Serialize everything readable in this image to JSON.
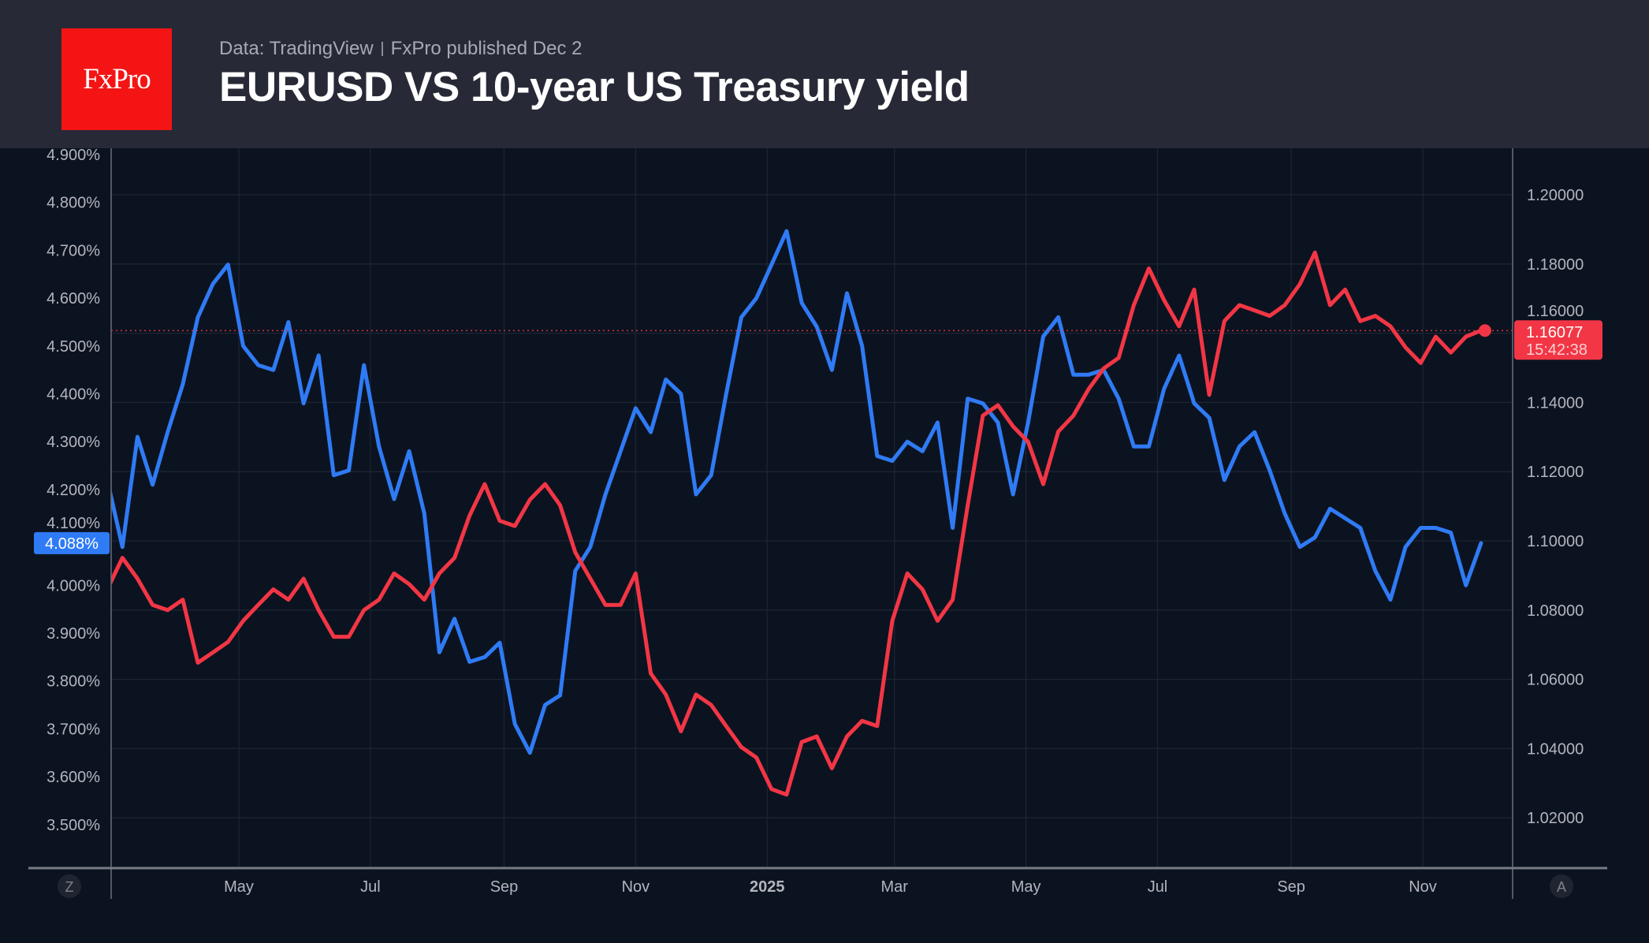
{
  "header": {
    "logo_text": "FxPro",
    "source": "Data: TradingView",
    "published": "FxPro published Dec 2",
    "title": "EURUSD VS 10-year US Treasury yield"
  },
  "colors": {
    "yield": "#2f7bf5",
    "eurusd": "#f23645",
    "background": "#0c1320",
    "header": "#272a36"
  },
  "buttons": {
    "left": "Z",
    "right": "A"
  },
  "chart_data": {
    "type": "line",
    "title": "EURUSD VS 10-year US Treasury yield",
    "x_ticks": [
      {
        "label": "May",
        "date": "2024-05-01"
      },
      {
        "label": "Jul",
        "date": "2024-07-01"
      },
      {
        "label": "Sep",
        "date": "2024-09-01"
      },
      {
        "label": "Nov",
        "date": "2024-11-01"
      },
      {
        "label": "2025",
        "date": "2025-01-01",
        "bold": true
      },
      {
        "label": "Mar",
        "date": "2025-03-01"
      },
      {
        "label": "May",
        "date": "2025-05-01"
      },
      {
        "label": "Jul",
        "date": "2025-07-01"
      },
      {
        "label": "Sep",
        "date": "2025-09-01"
      },
      {
        "label": "Nov",
        "date": "2025-11-01"
      }
    ],
    "left_axis": {
      "ticks": [
        "4.900%",
        "4.800%",
        "4.700%",
        "4.600%",
        "4.500%",
        "4.400%",
        "4.300%",
        "4.200%",
        "4.100%",
        "4.000%",
        "3.900%",
        "3.800%",
        "3.700%",
        "3.600%",
        "3.500%"
      ],
      "range": [
        3.5,
        4.9
      ],
      "last_label": "4.088%"
    },
    "right_axis": {
      "ticks": [
        "1.20000",
        "1.18000",
        "1.16000",
        "1.14000",
        "1.12000",
        "1.10000",
        "1.08000",
        "1.06000",
        "1.04000",
        "1.02000"
      ],
      "range": [
        1.02,
        1.2
      ],
      "last_label": "1.16077",
      "countdown": "15:42:38"
    },
    "grid": true,
    "dates": [
      "2024-03-01",
      "2024-03-08",
      "2024-03-15",
      "2024-03-22",
      "2024-03-29",
      "2024-04-05",
      "2024-04-12",
      "2024-04-19",
      "2024-04-26",
      "2024-05-03",
      "2024-05-10",
      "2024-05-17",
      "2024-05-24",
      "2024-05-31",
      "2024-06-07",
      "2024-06-14",
      "2024-06-21",
      "2024-06-28",
      "2024-07-05",
      "2024-07-12",
      "2024-07-19",
      "2024-07-26",
      "2024-08-02",
      "2024-08-09",
      "2024-08-16",
      "2024-08-23",
      "2024-08-30",
      "2024-09-06",
      "2024-09-13",
      "2024-09-20",
      "2024-09-27",
      "2024-10-04",
      "2024-10-11",
      "2024-10-18",
      "2024-10-25",
      "2024-11-01",
      "2024-11-08",
      "2024-11-15",
      "2024-11-22",
      "2024-11-29",
      "2024-12-06",
      "2024-12-13",
      "2024-12-20",
      "2024-12-27",
      "2025-01-03",
      "2025-01-10",
      "2025-01-17",
      "2025-01-24",
      "2025-01-31",
      "2025-02-07",
      "2025-02-14",
      "2025-02-21",
      "2025-02-28",
      "2025-03-07",
      "2025-03-14",
      "2025-03-21",
      "2025-03-28",
      "2025-04-04",
      "2025-04-11",
      "2025-04-18",
      "2025-04-25",
      "2025-05-02",
      "2025-05-09",
      "2025-05-16",
      "2025-05-23",
      "2025-05-30",
      "2025-06-06",
      "2025-06-13",
      "2025-06-20",
      "2025-06-27",
      "2025-07-04",
      "2025-07-11",
      "2025-07-18",
      "2025-07-25",
      "2025-08-01",
      "2025-08-08",
      "2025-08-15",
      "2025-08-22",
      "2025-08-29",
      "2025-09-05",
      "2025-09-12",
      "2025-09-19",
      "2025-09-26",
      "2025-10-03",
      "2025-10-10",
      "2025-10-17",
      "2025-10-24",
      "2025-10-31",
      "2025-11-07",
      "2025-11-14",
      "2025-11-21",
      "2025-11-28"
    ],
    "series": [
      {
        "axis": "left",
        "color": "#2f7bf5",
        "values": [
          4.22,
          4.08,
          4.31,
          4.21,
          4.32,
          4.42,
          4.56,
          4.63,
          4.67,
          4.5,
          4.46,
          4.45,
          4.55,
          4.38,
          4.48,
          4.23,
          4.24,
          4.46,
          4.29,
          4.18,
          4.28,
          4.15,
          3.86,
          3.93,
          3.84,
          3.85,
          3.88,
          3.71,
          3.65,
          3.75,
          3.77,
          4.03,
          4.08,
          4.19,
          4.28,
          4.37,
          4.32,
          4.43,
          4.4,
          4.19,
          4.23,
          4.4,
          4.56,
          4.6,
          4.67,
          4.74,
          4.59,
          4.54,
          4.45,
          4.61,
          4.5,
          4.27,
          4.26,
          4.3,
          4.28,
          4.34,
          4.12,
          4.39,
          4.38,
          4.34,
          4.19,
          4.34,
          4.52,
          4.56,
          4.44,
          4.44,
          4.45,
          4.39,
          4.29,
          4.29,
          4.41,
          4.48,
          4.38,
          4.35,
          4.22,
          4.29,
          4.32,
          4.24,
          4.15,
          4.08,
          4.1,
          4.16,
          4.14,
          4.12,
          4.03,
          3.97,
          4.08,
          4.12,
          4.12,
          4.11,
          4.0,
          4.088
        ]
      },
      {
        "axis": "right",
        "color": "#f23645",
        "values": [
          1.086,
          1.0951,
          1.0891,
          1.0815,
          1.08,
          1.083,
          1.0648,
          1.0678,
          1.0708,
          1.0769,
          1.0815,
          1.086,
          1.083,
          1.0891,
          1.08,
          1.0723,
          1.0723,
          1.08,
          1.083,
          1.0906,
          1.0875,
          1.083,
          1.0906,
          1.0951,
          1.1073,
          1.1164,
          1.1058,
          1.1043,
          1.1119,
          1.1164,
          1.1103,
          1.0967,
          1.0891,
          1.0815,
          1.0815,
          1.0906,
          1.0617,
          1.0556,
          1.045,
          1.0556,
          1.0526,
          1.0465,
          1.0404,
          1.0374,
          1.0283,
          1.0267,
          1.0419,
          1.0435,
          1.0343,
          1.0435,
          1.048,
          1.0465,
          1.0769,
          1.0906,
          1.086,
          1.0769,
          1.083,
          1.1103,
          1.1362,
          1.1392,
          1.1331,
          1.1286,
          1.1164,
          1.1316,
          1.1362,
          1.1438,
          1.1498,
          1.1529,
          1.1681,
          1.1787,
          1.1696,
          1.162,
          1.1726,
          1.1422,
          1.1635,
          1.1681,
          1.1666,
          1.165,
          1.1681,
          1.1742,
          1.1833,
          1.1681,
          1.1726,
          1.1635,
          1.165,
          1.162,
          1.1559,
          1.1514,
          1.159,
          1.1544,
          1.159,
          1.16077
        ]
      }
    ]
  }
}
